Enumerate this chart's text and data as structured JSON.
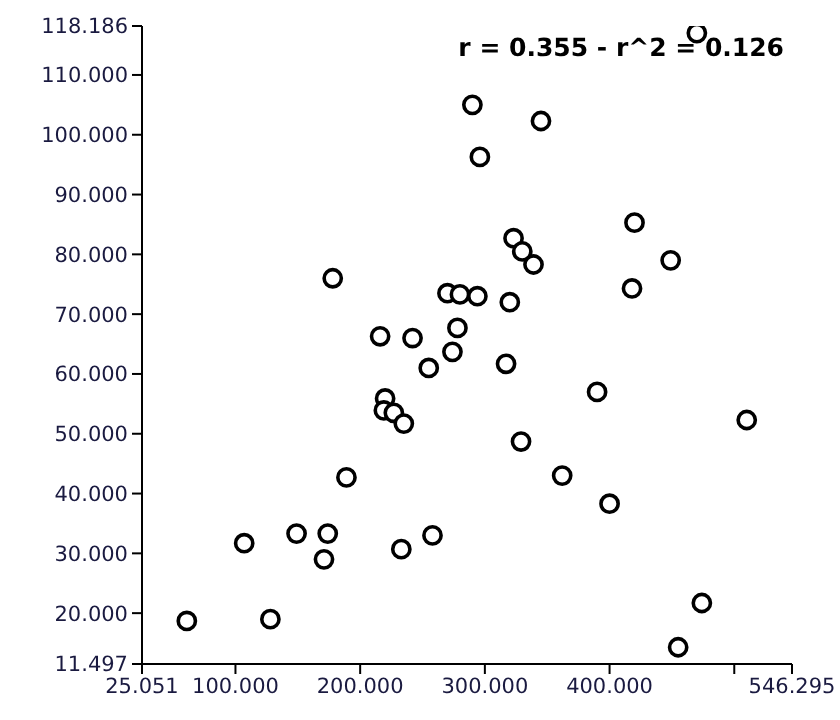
{
  "chart_data": {
    "type": "scatter",
    "annotations": [
      "r = 0.355 - r^2 = 0.126"
    ],
    "marker": "circle",
    "grid": false,
    "xlim": [
      25.051,
      546.295
    ],
    "xticks": [
      {
        "value": 25.051,
        "label": "25.051"
      },
      {
        "value": 100,
        "label": "100.000"
      },
      {
        "value": 200,
        "label": "200.000"
      },
      {
        "value": 300,
        "label": "300.000"
      },
      {
        "value": 400,
        "label": "400.000"
      },
      {
        "value": 500,
        "label": null
      },
      {
        "value": 546.295,
        "label": "546.295"
      }
    ],
    "ylim": [
      11.497,
      118.186
    ],
    "yticks": [
      {
        "value": 11.497,
        "label": "11.497"
      },
      {
        "value": 20,
        "label": "20.000"
      },
      {
        "value": 30,
        "label": "30.000"
      },
      {
        "value": 40,
        "label": "40.000"
      },
      {
        "value": 50,
        "label": "50.000"
      },
      {
        "value": 60,
        "label": "60.000"
      },
      {
        "value": 70,
        "label": "70.000"
      },
      {
        "value": 80,
        "label": "80.000"
      },
      {
        "value": 90,
        "label": "90.000"
      },
      {
        "value": 100,
        "label": "100.000"
      },
      {
        "value": 110,
        "label": "110.000"
      },
      {
        "value": 118.186,
        "label": "118.186"
      }
    ],
    "series": [
      {
        "color": "#000000",
        "x": [
          470,
          290,
          345,
          296,
          420,
          323,
          330,
          339,
          449,
          178,
          418,
          270,
          280,
          294,
          320,
          216,
          242,
          278,
          274,
          255,
          317,
          390,
          220,
          219,
          227,
          235,
          510,
          329,
          362,
          189,
          400,
          107,
          149,
          174,
          171,
          233,
          258,
          61,
          128,
          474,
          455
        ],
        "values": [
          117,
          105,
          102.3,
          96.3,
          85.3,
          82.7,
          80.5,
          78.3,
          79,
          76,
          74.3,
          73.5,
          73.3,
          73,
          72,
          66.3,
          66,
          67.7,
          63.7,
          61,
          61.7,
          57,
          55.9,
          53.9,
          53.5,
          51.7,
          52.3,
          48.7,
          43,
          42.7,
          38.3,
          31.7,
          33.3,
          33.3,
          29,
          30.7,
          33,
          18.7,
          19,
          21.7,
          14.3
        ]
      }
    ]
  }
}
